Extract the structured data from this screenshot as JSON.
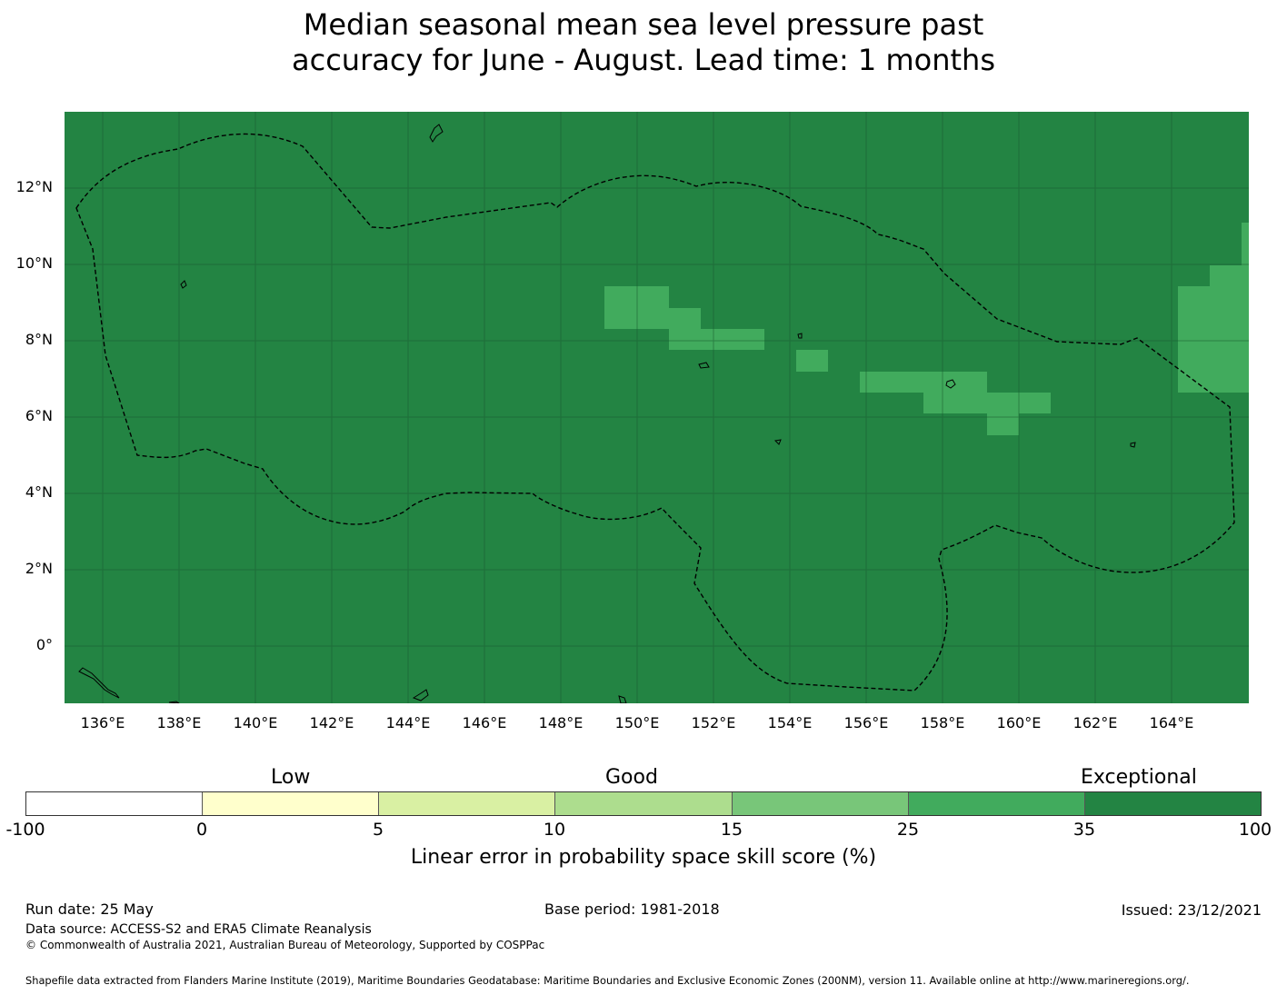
{
  "title_line1": "Median seasonal mean sea level pressure past",
  "title_line2": "accuracy for June - August. Lead time: 1 months",
  "map": {
    "background_color": "#238443",
    "highlight_color": "#41ab5d",
    "lat_ticks": [
      "12°N",
      "10°N",
      "8°N",
      "6°N",
      "4°N",
      "2°N",
      "0°"
    ],
    "lon_ticks": [
      "136°E",
      "138°E",
      "140°E",
      "142°E",
      "144°E",
      "146°E",
      "148°E",
      "150°E",
      "152°E",
      "154°E",
      "156°E",
      "158°E",
      "160°E",
      "162°E",
      "164°E"
    ]
  },
  "colorbar": {
    "category_labels": [
      "Low",
      "Good",
      "Exceptional"
    ],
    "tick_labels": [
      "-100",
      "0",
      "5",
      "10",
      "15",
      "25",
      "35",
      "100"
    ],
    "colors": [
      "#ffffff",
      "#ffffcc",
      "#d9f0a3",
      "#addd8e",
      "#78c679",
      "#41ab5d",
      "#238443"
    ],
    "caption": "Linear error in probability space skill score (%)"
  },
  "footer": {
    "run_date": "Run date: 25 May",
    "base_period": "Base period: 1981-2018",
    "issued": "Issued: 23/12/2021",
    "data_source": "Data source: ACCESS-S2 and ERA5 Climate Reanalysis",
    "copyright": "© Commonwealth of Australia 2021, Australian Bureau of Meteorology, Supported by COSPPac",
    "shapefile": "Shapefile data extracted from Flanders Marine Institute (2019), Maritime Boundaries Geodatabase: Maritime Boundaries and Exclusive Economic Zones (200NM), version 11. Available online at http://www.marineregions.org/."
  }
}
